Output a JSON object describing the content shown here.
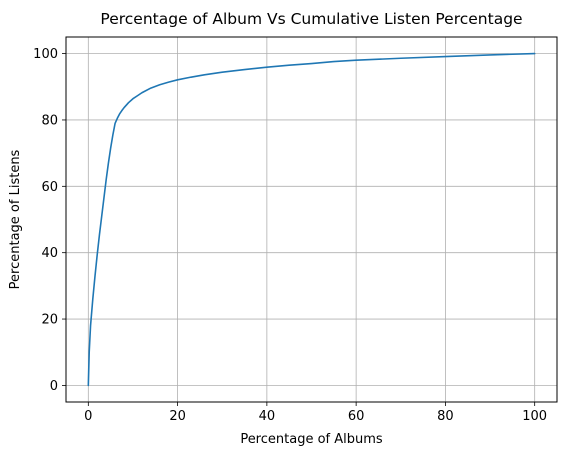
{
  "chart_data": {
    "type": "line",
    "title": "Percentage of Album Vs Cumulative Listen Percentage",
    "xlabel": "Percentage of Albums",
    "ylabel": "Percentage of Listens",
    "xlim": [
      -5,
      105
    ],
    "ylim": [
      -5,
      105
    ],
    "xticks": [
      0,
      20,
      40,
      60,
      80,
      100
    ],
    "yticks": [
      0,
      20,
      40,
      60,
      80,
      100
    ],
    "xtick_labels": [
      "0",
      "20",
      "40",
      "60",
      "80",
      "100"
    ],
    "ytick_labels": [
      "0",
      "20",
      "40",
      "60",
      "80",
      "100"
    ],
    "grid": true,
    "series": [
      {
        "color": "#1f77b4",
        "x": [
          0,
          0.2,
          0.5,
          1,
          1.5,
          2,
          2.5,
          3,
          3.5,
          4,
          4.5,
          5,
          5.5,
          6,
          6.5,
          7,
          7.5,
          8,
          9,
          10,
          11,
          12,
          14,
          16,
          18,
          20,
          23,
          26,
          30,
          35,
          40,
          45,
          50,
          55,
          60,
          70,
          80,
          90,
          100
        ],
        "y": [
          0,
          10,
          18,
          26,
          33,
          39.5,
          45.5,
          51,
          56.5,
          62,
          67,
          71.5,
          75.5,
          79,
          80.5,
          81.8,
          82.8,
          83.7,
          85.2,
          86.4,
          87.3,
          88.2,
          89.6,
          90.6,
          91.4,
          92.1,
          92.9,
          93.6,
          94.4,
          95.2,
          95.9,
          96.5,
          97,
          97.6,
          98,
          98.6,
          99.1,
          99.6,
          100
        ]
      }
    ]
  }
}
